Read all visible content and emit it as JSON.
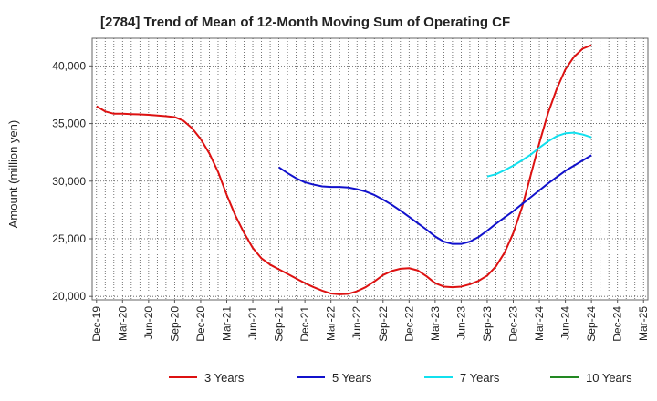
{
  "chart_data": {
    "type": "line",
    "title": "[2784]  Trend of Mean of 12-Month Moving Sum of Operating CF",
    "xlabel": "",
    "ylabel": "Amount (million yen)",
    "ylim": [
      19700,
      42400
    ],
    "yticks": [
      20000,
      25000,
      30000,
      35000,
      40000
    ],
    "ytick_labels": [
      "20,000",
      "25,000",
      "30,000",
      "35,000",
      "40,000"
    ],
    "x_months": [
      "Dec-19",
      "Jan-20",
      "Feb-20",
      "Mar-20",
      "Apr-20",
      "May-20",
      "Jun-20",
      "Jul-20",
      "Aug-20",
      "Sep-20",
      "Oct-20",
      "Nov-20",
      "Dec-20",
      "Jan-21",
      "Feb-21",
      "Mar-21",
      "Apr-21",
      "May-21",
      "Jun-21",
      "Jul-21",
      "Aug-21",
      "Sep-21",
      "Oct-21",
      "Nov-21",
      "Dec-21",
      "Jan-22",
      "Feb-22",
      "Mar-22",
      "Apr-22",
      "May-22",
      "Jun-22",
      "Jul-22",
      "Aug-22",
      "Sep-22",
      "Oct-22",
      "Nov-22",
      "Dec-22",
      "Jan-23",
      "Feb-23",
      "Mar-23",
      "Apr-23",
      "May-23",
      "Jun-23",
      "Jul-23",
      "Aug-23",
      "Sep-23",
      "Oct-23",
      "Nov-23",
      "Dec-23",
      "Jan-24",
      "Feb-24",
      "Mar-24",
      "Apr-24",
      "May-24",
      "Jun-24",
      "Jul-24",
      "Aug-24",
      "Sep-24",
      "Oct-24",
      "Nov-24",
      "Dec-24",
      "Jan-25",
      "Feb-25",
      "Mar-25"
    ],
    "x_tick_labels": [
      "Dec-19",
      "Mar-20",
      "Jun-20",
      "Sep-20",
      "Dec-20",
      "Mar-21",
      "Jun-21",
      "Sep-21",
      "Dec-21",
      "Mar-22",
      "Jun-22",
      "Sep-22",
      "Dec-22",
      "Mar-23",
      "Jun-23",
      "Sep-23",
      "Dec-23",
      "Mar-24",
      "Jun-24",
      "Sep-24",
      "Dec-24",
      "Mar-25"
    ],
    "grid": true,
    "legend_position": "bottom",
    "series": [
      {
        "name": "3 Years",
        "color": "#dd1111",
        "start_index": 0,
        "values": [
          36500,
          36050,
          35850,
          35850,
          35820,
          35800,
          35760,
          35700,
          35640,
          35560,
          35250,
          34600,
          33650,
          32400,
          30800,
          28800,
          27000,
          25500,
          24200,
          23300,
          22750,
          22350,
          21950,
          21550,
          21150,
          20800,
          20500,
          20250,
          20180,
          20220,
          20450,
          20800,
          21300,
          21850,
          22200,
          22400,
          22450,
          22250,
          21750,
          21150,
          20850,
          20800,
          20850,
          21050,
          21350,
          21800,
          22600,
          23800,
          25500,
          27700,
          30500,
          33300,
          35900,
          38000,
          39700,
          40800,
          41500,
          41800
        ]
      },
      {
        "name": "5 Years",
        "color": "#1111cc",
        "start_index": 21,
        "values": [
          31200,
          30700,
          30250,
          29900,
          29700,
          29550,
          29500,
          29500,
          29450,
          29300,
          29100,
          28800,
          28400,
          27950,
          27450,
          26900,
          26350,
          25800,
          25200,
          24750,
          24550,
          24550,
          24750,
          25150,
          25700,
          26300,
          26850,
          27400,
          28000,
          28600,
          29200,
          29800,
          30350,
          30900,
          31350,
          31800,
          32250
        ]
      },
      {
        "name": "7 Years",
        "color": "#11e0ee",
        "start_index": 45,
        "values": [
          30400,
          30600,
          30950,
          31350,
          31800,
          32300,
          32900,
          33450,
          33900,
          34150,
          34200,
          34050,
          33800
        ]
      },
      {
        "name": "10 Years",
        "color": "#228822",
        "start_index": 0,
        "values": []
      }
    ]
  }
}
